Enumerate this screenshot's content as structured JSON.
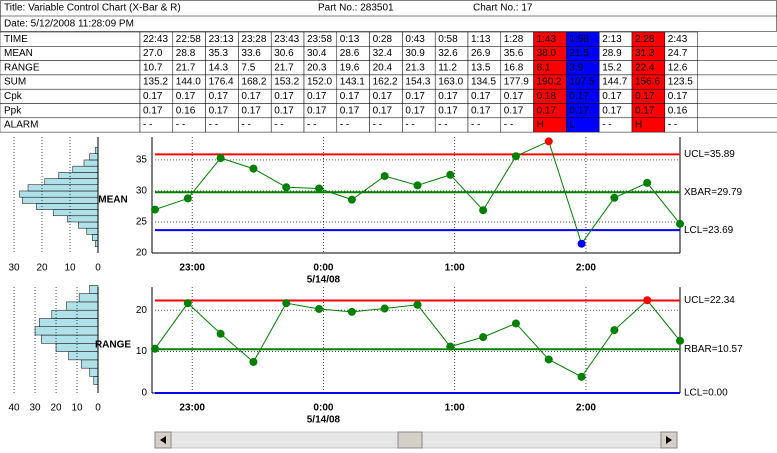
{
  "header": {
    "title": "Title: Variable Control Chart (X-Bar & R)",
    "part": "Part No.: 283501",
    "chart_no": "Chart No.: 17",
    "date": "Date: 5/12/2008 11:28:09 PM"
  },
  "table": {
    "column_colors": [
      "#ffffff",
      "#ffffff",
      "#ffffff",
      "#ffffff",
      "#ffffff",
      "#ffffff",
      "#ffffff",
      "#ffffff",
      "#ffffff",
      "#ffffff",
      "#ffffff",
      "#ffffff",
      "#ff0000",
      "#0000ff",
      "#ffffff",
      "#ff0000",
      "#ffffff"
    ],
    "rows": [
      {
        "label": "TIME",
        "cells": [
          "22:43",
          "22:58",
          "23:13",
          "23:28",
          "23:43",
          "23:58",
          "0:13",
          "0:28",
          "0:43",
          "0:58",
          "1:13",
          "1:28",
          "1:43",
          "1:58",
          "2:13",
          "2:28",
          "2:43"
        ]
      },
      {
        "label": "MEAN",
        "cells": [
          "27.0",
          "28.8",
          "35.3",
          "33.6",
          "30.6",
          "30.4",
          "28.6",
          "32.4",
          "30.9",
          "32.6",
          "26.9",
          "35.6",
          "38.0",
          "21.5",
          "28.9",
          "31.3",
          "24.7"
        ]
      },
      {
        "label": "RANGE",
        "cells": [
          "10.7",
          "21.7",
          "14.3",
          "7.5",
          "21.7",
          "20.3",
          "19.6",
          "20.4",
          "21.3",
          "11.2",
          "13.5",
          "16.8",
          "8.1",
          "3.9",
          "15.2",
          "22.4",
          "12.6"
        ]
      },
      {
        "label": "SUM",
        "cells": [
          "135.2",
          "144.0",
          "176.4",
          "168.2",
          "153.2",
          "152.0",
          "143.1",
          "162.2",
          "154.3",
          "163.0",
          "134.5",
          "177.9",
          "190.2",
          "107.5",
          "144.7",
          "156.6",
          "123.5"
        ]
      },
      {
        "label": "Cpk",
        "cells": [
          "0.17",
          "0.17",
          "0.17",
          "0.17",
          "0.17",
          "0.17",
          "0.17",
          "0.17",
          "0.17",
          "0.17",
          "0.17",
          "0.17",
          "0.18",
          "0.17",
          "0.17",
          "0.17",
          "0.17"
        ]
      },
      {
        "label": "Ppk",
        "cells": [
          "0.17",
          "0.16",
          "0.17",
          "0.17",
          "0.17",
          "0.17",
          "0.17",
          "0.17",
          "0.17",
          "0.17",
          "0.17",
          "0.17",
          "0.17",
          "0.17",
          "0.17",
          "0.17",
          "0.16"
        ]
      },
      {
        "label": "ALARM",
        "cells": [
          "- -",
          "- -",
          "- -",
          "- -",
          "- -",
          "- -",
          "- -",
          "- -",
          "- -",
          "- -",
          "- -",
          "- -",
          "H",
          "L",
          "- -",
          "H",
          "- -"
        ]
      }
    ]
  },
  "chart_data": [
    {
      "type": "line",
      "label": "MEAN",
      "color": "#008000",
      "grid": true,
      "values": [
        27.0,
        28.8,
        35.3,
        33.6,
        30.6,
        30.4,
        28.6,
        32.4,
        30.9,
        32.6,
        26.9,
        35.6,
        38.0,
        21.5,
        28.9,
        31.3,
        24.7
      ],
      "ylim": [
        20,
        38.7
      ],
      "yticks": [
        20,
        25,
        30,
        35
      ],
      "xticks": [
        "23:00",
        "0:00",
        "1:00",
        "2:00"
      ],
      "date_label": "5/14/08",
      "limits": [
        {
          "value": 35.89,
          "label": "UCL=35.89",
          "color": "#ff0000"
        },
        {
          "value": 29.79,
          "label": "XBAR=29.79",
          "color": "#008000"
        },
        {
          "value": 23.69,
          "label": "LCL=23.69",
          "color": "#0000ff"
        }
      ],
      "histogram": {
        "color": "#b0e0e8",
        "bins": [
          21,
          22,
          23,
          24,
          25,
          26,
          27,
          28,
          29,
          30,
          31,
          32,
          33,
          34,
          35,
          36,
          37
        ],
        "counts": [
          1,
          2,
          4,
          7,
          11,
          16,
          22,
          27,
          28,
          25,
          19,
          14,
          9,
          5,
          3,
          1
        ],
        "xlim": [
          35,
          0
        ],
        "xticks": [
          30,
          20,
          10,
          0
        ]
      }
    },
    {
      "type": "line",
      "label": "RANGE",
      "color": "#008000",
      "grid": true,
      "values": [
        10.7,
        21.7,
        14.3,
        7.5,
        21.7,
        20.3,
        19.6,
        20.4,
        21.3,
        11.2,
        13.5,
        16.8,
        8.1,
        3.9,
        15.2,
        22.4,
        12.6
      ],
      "ylim": [
        0,
        25.6
      ],
      "yticks": [
        0,
        10,
        20
      ],
      "xticks": [
        "23:00",
        "0:00",
        "1:00",
        "2:00"
      ],
      "date_label": "5/14/08",
      "limits": [
        {
          "value": 22.34,
          "label": "UCL=22.34",
          "color": "#ff0000"
        },
        {
          "value": 10.57,
          "label": "RBAR=10.57",
          "color": "#008000"
        },
        {
          "value": 0,
          "label": "LCL=0.00",
          "color": "#0000ff"
        }
      ],
      "histogram": {
        "color": "#b0e0e8",
        "bins": [
          2,
          4,
          6,
          8,
          10,
          12,
          14,
          16,
          18,
          20,
          22,
          24,
          26
        ],
        "counts": [
          2,
          4,
          8,
          14,
          20,
          27,
          30,
          28,
          22,
          15,
          9,
          4
        ],
        "xlim": [
          46.7,
          0
        ],
        "xticks": [
          40,
          30,
          20,
          10,
          0
        ]
      }
    }
  ]
}
